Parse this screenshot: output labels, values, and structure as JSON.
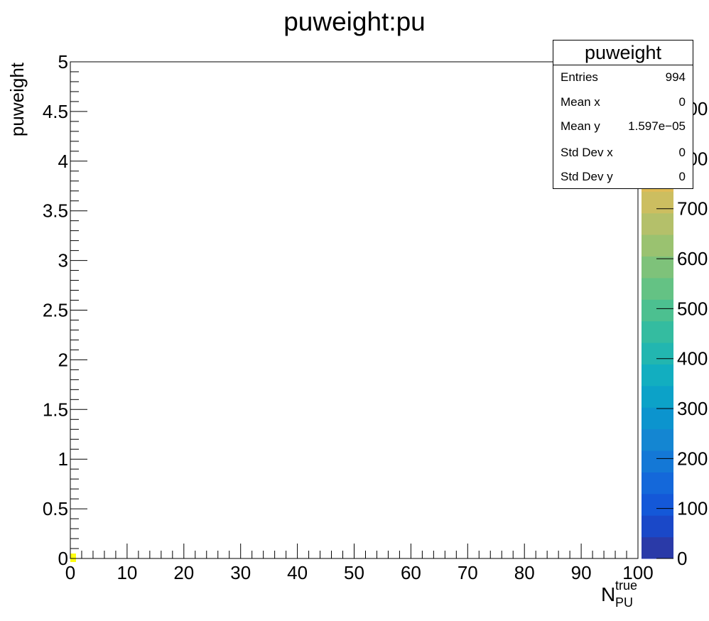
{
  "chart_data": {
    "type": "heatmap",
    "title": "puweight:pu",
    "xlabel": {
      "main": "N",
      "superscript": "true",
      "subscript": "PU"
    },
    "ylabel": "puweight",
    "xlim": [
      0,
      100
    ],
    "ylim": [
      0,
      5
    ],
    "x_ticks": [
      "0",
      "10",
      "20",
      "30",
      "40",
      "50",
      "60",
      "70",
      "80",
      "90",
      "100"
    ],
    "y_ticks": [
      "0",
      "0.5",
      "1",
      "1.5",
      "2",
      "2.5",
      "3",
      "3.5",
      "4",
      "4.5",
      "5"
    ],
    "bins": [
      {
        "x_low": 0,
        "x_high": 1,
        "y_low": 0,
        "y_high": 0.05,
        "count": 994
      }
    ],
    "colorbar": {
      "ticks": [
        "0",
        "100",
        "200",
        "300",
        "400",
        "500",
        "600",
        "700",
        "800",
        "900"
      ],
      "tick_values": [
        0,
        100,
        200,
        300,
        400,
        500,
        600,
        700,
        800,
        900
      ],
      "max": 994,
      "palette": [
        "#2a3aa8",
        "#1a48c8",
        "#1458d8",
        "#1468da",
        "#1478d6",
        "#1486d2",
        "#0c94ce",
        "#0ca2c8",
        "#12aec0",
        "#22b6b0",
        "#34bca0",
        "#4cc090",
        "#64c284",
        "#7ec27a",
        "#9ac270",
        "#b4c06a",
        "#ccbe60",
        "#e0bc56",
        "#f0c04c",
        "#f8d03e",
        "#fce22e",
        "#fff21c",
        "#fffe10"
      ]
    },
    "stats": {
      "title": "puweight",
      "rows": [
        {
          "label": "Entries",
          "value": "994"
        },
        {
          "label": "Mean x",
          "value": "0"
        },
        {
          "label": "Mean y",
          "value": "1.597e−05"
        },
        {
          "label": "Std Dev x",
          "value": "0"
        },
        {
          "label": "Std Dev y",
          "value": "0"
        }
      ]
    }
  }
}
